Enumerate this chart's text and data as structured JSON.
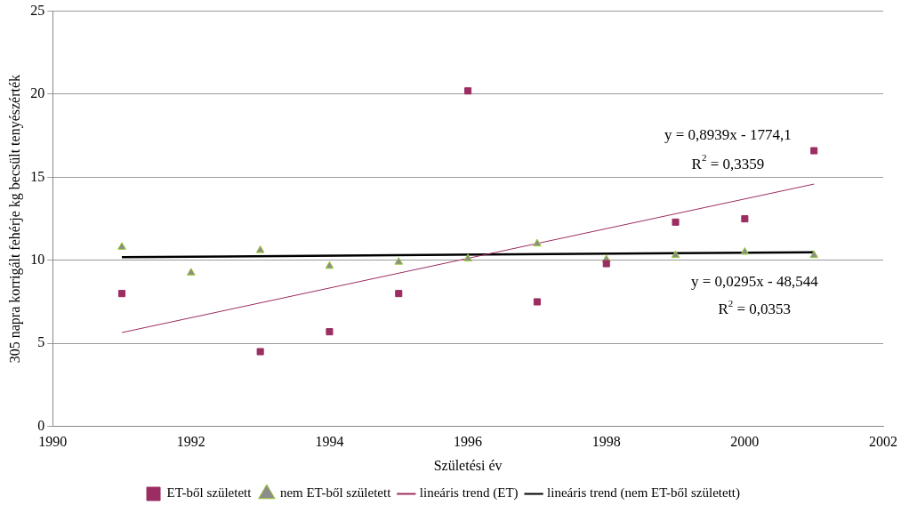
{
  "chart_data": {
    "type": "scatter",
    "xlabel": "Születési év",
    "ylabel": "305 napra korrigált fehérje kg becsült tenyészérték",
    "xlim": [
      1990,
      2002
    ],
    "xticks": [
      1990,
      1992,
      1994,
      1996,
      1998,
      2000,
      2002
    ],
    "ylim": [
      0,
      25
    ],
    "yticks": [
      0,
      5,
      10,
      15,
      20,
      25
    ],
    "grid": "y",
    "legend": "bottom",
    "series": [
      {
        "name": "ET-ből született",
        "marker": "square",
        "color": "#9b2d62",
        "x": [
          1991,
          1993,
          1994,
          1995,
          1996,
          1997,
          1998,
          1999,
          2000,
          2001
        ],
        "values": [
          8.0,
          4.5,
          5.7,
          8.0,
          20.2,
          7.5,
          9.8,
          12.3,
          12.5,
          16.6
        ]
      },
      {
        "name": "nem ET-ből született",
        "marker": "triangle",
        "color": "#8c8c8c",
        "x": [
          1991,
          1992,
          1993,
          1994,
          1995,
          1996,
          1997,
          1998,
          1999,
          2000,
          2001
        ],
        "values": [
          10.8,
          9.25,
          10.6,
          9.65,
          9.9,
          10.1,
          11.0,
          10.05,
          10.3,
          10.5,
          10.3
        ]
      },
      {
        "name": "lineáris trend (ET)",
        "type": "line",
        "marker": "none",
        "color": "#9b2d62",
        "x": [
          1991,
          2001
        ],
        "values": [
          5.65,
          14.59
        ]
      },
      {
        "name": "lineáris trend (nem ET-ből született)",
        "type": "line",
        "marker": "none",
        "color": "#000000",
        "x": [
          1991,
          2001
        ],
        "values": [
          10.19,
          10.49
        ]
      }
    ],
    "annotations": [
      "y = 0,8939x - 1774,1",
      "R$^{2}$ = 0,3359",
      "y = 0,0295x - 48,544",
      "R$^{2}$ = 0,0353"
    ]
  }
}
